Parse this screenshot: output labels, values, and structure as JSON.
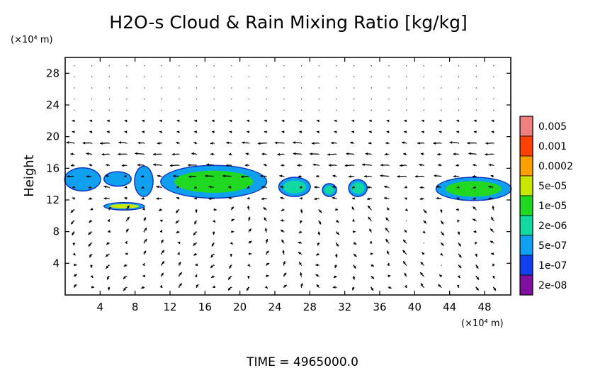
{
  "chart_data": {
    "type": "heatmap",
    "title": "H2O-s Cloud & Rain Mixing Ratio [kg/kg]",
    "ylabel": "Height",
    "y_unit": "(×10⁴ m)",
    "x_unit": "(×10⁴ m)",
    "xlim": [
      0,
      51
    ],
    "ylim": [
      0,
      30
    ],
    "xticks": [
      4,
      8,
      12,
      16,
      20,
      24,
      28,
      32,
      36,
      40,
      44,
      48
    ],
    "yticks": [
      4,
      8,
      12,
      16,
      20,
      24,
      28
    ],
    "legend": {
      "position": "right",
      "levels": [
        {
          "label": "0.005",
          "color": "#f08080"
        },
        {
          "label": "0.001",
          "color": "#ff4000"
        },
        {
          "label": "0.0002",
          "color": "#ffa000"
        },
        {
          "label": "5e-05",
          "color": "#c8e600"
        },
        {
          "label": "1e-05",
          "color": "#20d820"
        },
        {
          "label": "2e-06",
          "color": "#10d8a0"
        },
        {
          "label": "5e-07",
          "color": "#10a0f0"
        },
        {
          "label": "1e-07",
          "color": "#1040f0"
        },
        {
          "label": "2e-08",
          "color": "#8010a0"
        }
      ]
    },
    "cloud_regions": [
      {
        "x": [
          0,
          4
        ],
        "y": [
          13.2,
          16.0
        ],
        "level": "5e-07"
      },
      {
        "x": [
          4.5,
          7.5
        ],
        "y": [
          13.8,
          15.5
        ],
        "level": "5e-07"
      },
      {
        "x": [
          8,
          10
        ],
        "y": [
          12.5,
          16.2
        ],
        "level": "5e-07"
      },
      {
        "x": [
          11,
          23
        ],
        "y": [
          12.3,
          16.3
        ],
        "level": "1e-05"
      },
      {
        "x": [
          24.5,
          28
        ],
        "y": [
          12.5,
          14.8
        ],
        "level": "2e-06"
      },
      {
        "x": [
          29.5,
          31
        ],
        "y": [
          12.5,
          14.0
        ],
        "level": "2e-06"
      },
      {
        "x": [
          32.5,
          34.5
        ],
        "y": [
          12.5,
          14.5
        ],
        "level": "2e-06"
      },
      {
        "x": [
          42.5,
          51
        ],
        "y": [
          12.0,
          14.8
        ],
        "level": "1e-05"
      },
      {
        "x": [
          4.5,
          9
        ],
        "y": [
          10.8,
          11.6
        ],
        "level": "5e-05"
      }
    ],
    "wind": {
      "jet_height_range": [
        15,
        20
      ],
      "jet_direction": "westward",
      "lower_direction": "mixed"
    },
    "footer": "TIME  =  4965000.0"
  }
}
